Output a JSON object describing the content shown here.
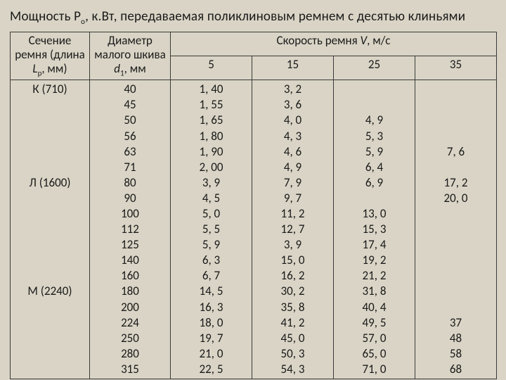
{
  "title_parts": [
    "Мощность Р",
    "о",
    ", к.Вт, передаваемая поликлиновым ремнем с десятью клиньями"
  ],
  "hdr": {
    "section": [
      "Сечение",
      "ремня (длина",
      "L",
      "р",
      ", мм)"
    ],
    "diam": [
      "Диаметр",
      "малого шкива",
      "d",
      "1",
      ", мм"
    ],
    "speed": "Скорость ремня V, м/с",
    "v5": "5",
    "v15": "15",
    "v25": "25",
    "v35": "35"
  },
  "sections": [
    "К (710)",
    "Л (1600)",
    "М (2240)"
  ],
  "diam_vals": [
    "40",
    "45",
    "50",
    "56",
    "63",
    "71",
    "80",
    "90",
    "100",
    "112",
    "125",
    "140",
    "160",
    "180",
    "200",
    "224",
    "250",
    "280",
    "315"
  ],
  "v5": [
    "1, 40",
    "1, 55",
    "1, 65",
    "1, 80",
    "1, 90",
    "2, 00",
    "3, 9",
    "4, 5",
    "5, 0",
    "5, 5",
    "5, 9",
    "6, 3",
    "6, 7",
    "14, 5",
    "16, 3",
    "18, 0",
    "19, 7",
    "21, 0",
    "22, 5"
  ],
  "v15": [
    "3, 2",
    "3, 6",
    "4, 0",
    "4, 3",
    "4, 6",
    "4, 9",
    "7, 9",
    "9, 7",
    "11, 2",
    "12, 7",
    "3, 9",
    "15, 0",
    "16, 2",
    "30, 2",
    "35, 8",
    "41, 2",
    "45, 0",
    "50, 3",
    "54, 3"
  ],
  "v25": [
    "",
    "",
    "4, 9",
    "5, 3",
    "5, 9",
    "6, 4",
    "6, 9",
    "",
    "13, 0",
    "15, 3",
    "17, 4",
    "19, 2",
    "21, 2",
    "31, 8",
    "40, 4",
    "49, 5",
    "57, 0",
    "65, 0",
    "71, 0"
  ],
  "v35": [
    "",
    "",
    "",
    "",
    "7, 6",
    "",
    "17, 2",
    "20, 0",
    "",
    "",
    "",
    "",
    "",
    "",
    "",
    "37",
    "48",
    "58",
    "68"
  ],
  "colors": {
    "bg": "#d9d4c5",
    "border": "#3a3a3a",
    "text": "#1a1a1a"
  }
}
